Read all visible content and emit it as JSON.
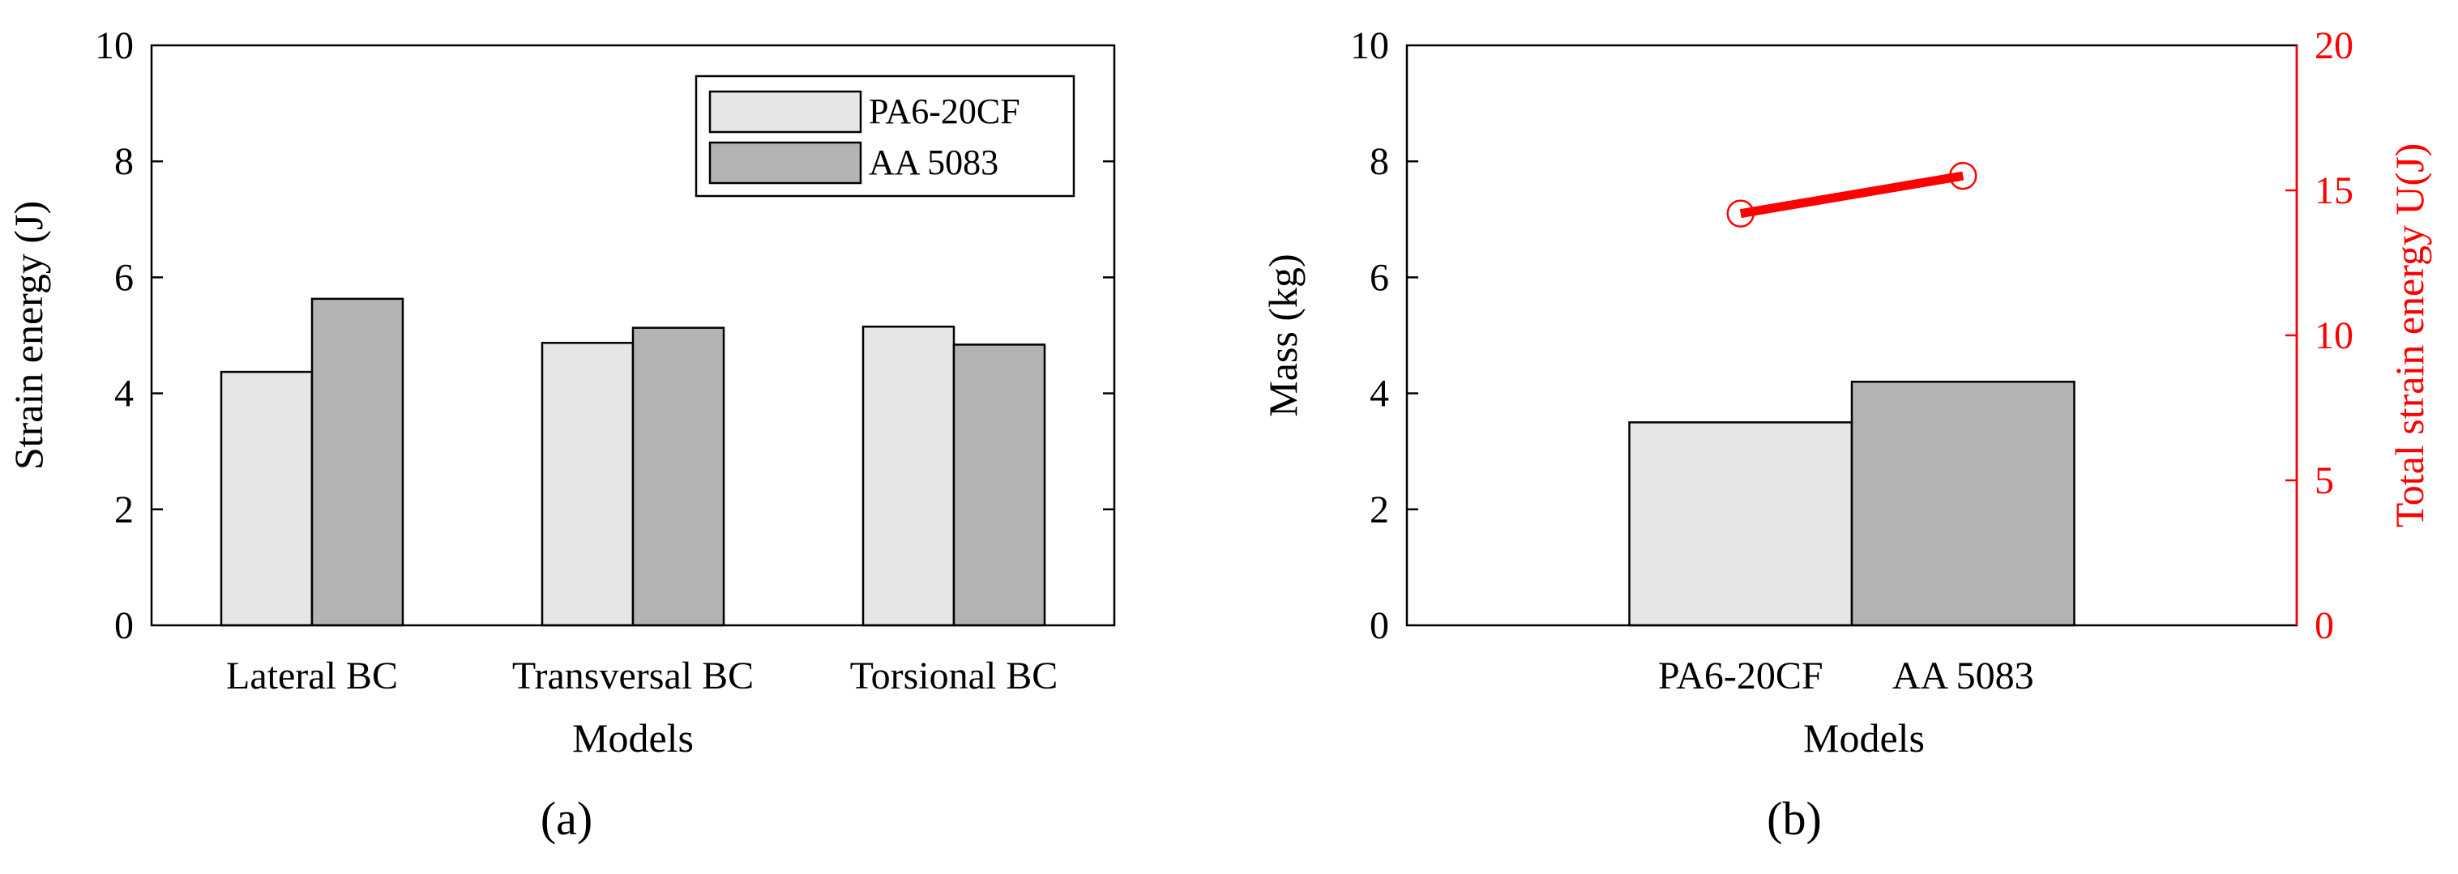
{
  "chart_data": [
    {
      "type": "bar",
      "panel_label": "(a)",
      "xlabel": "Models",
      "ylabel": "Strain energy (J)",
      "ylim": [
        0,
        10
      ],
      "yticks": [
        "0",
        "2",
        "4",
        "6",
        "8",
        "10"
      ],
      "categories": [
        "Lateral BC",
        "Transversal BC",
        "Torsional BC"
      ],
      "series": [
        {
          "name": "PA6-20CF",
          "values": [
            4.37,
            4.87,
            5.15
          ],
          "color": "#e6e6e6"
        },
        {
          "name": "AA 5083",
          "values": [
            5.63,
            5.13,
            4.84
          ],
          "color": "#b3b3b3"
        }
      ],
      "legend_position": "top-right",
      "grid": false
    },
    {
      "type": "bar",
      "panel_label": "(b)",
      "xlabel": "Models",
      "ylabel": "Mass (kg)",
      "ylim": [
        0,
        10
      ],
      "yticks": [
        "0",
        "2",
        "4",
        "6",
        "8",
        "10"
      ],
      "categories": [
        "PA6-20CF",
        "AA 5083"
      ],
      "values": [
        3.5,
        4.2
      ],
      "bar_colors": [
        "#e6e6e6",
        "#b3b3b3"
      ],
      "secondary_axis": {
        "type": "line",
        "ylabel": "Total strain energy U(J)",
        "ylim": [
          0,
          20
        ],
        "yticks": [
          "0",
          "5",
          "10",
          "15",
          "20"
        ],
        "values": [
          14.2,
          15.5
        ],
        "color": "#ff0000",
        "marker": "circle"
      },
      "grid": false
    }
  ]
}
